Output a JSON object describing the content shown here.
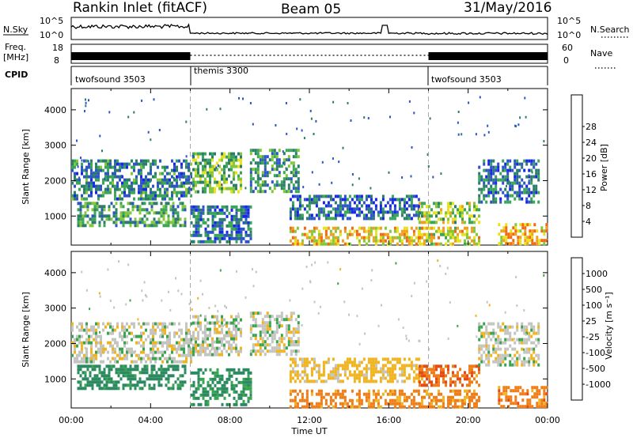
{
  "header": {
    "station": "Rankin Inlet (fitACF)",
    "beam": "Beam 05",
    "date": "31/May/2016"
  },
  "strip_panel": {
    "nsky_label": "N.Sky",
    "nsearch_label": "N.Search",
    "nsky_ticks": [
      "10^5",
      "10^0"
    ],
    "nsearch_ticks": [
      "10^5",
      "10^0"
    ],
    "freq_label_1": "Freq.",
    "freq_label_2": "[MHz]",
    "freq_ticks": [
      "18",
      "8"
    ],
    "nave_label": "Nave",
    "nave_ticks": [
      "60",
      "0"
    ],
    "cpid_label": "CPID",
    "cpid_segments": [
      {
        "name": "twofsound 3503",
        "start_hour": 0,
        "end_hour": 6
      },
      {
        "name": "themis 3300",
        "start_hour": 6,
        "end_hour": 18
      },
      {
        "name": "twofsound 3503",
        "start_hour": 18,
        "end_hour": 24
      }
    ]
  },
  "chart_data": [
    {
      "type": "heatmap",
      "title": "",
      "xlabel": "",
      "ylabel": "Slant Range [km]",
      "xlim": [
        0,
        24
      ],
      "ylim": [
        180,
        4600
      ],
      "y_ticks": [
        1000,
        2000,
        3000,
        4000
      ],
      "colorbar": {
        "label": "Power [dB]",
        "ticks": [
          "4",
          "8",
          "12",
          "16",
          "20",
          "24",
          "28"
        ],
        "colors": [
          "#1628e6",
          "#2e54c8",
          "#2c7e6a",
          "#3aa657",
          "#84c83a",
          "#e8e21c",
          "#f0a020",
          "#f06a14",
          "#e8140e"
        ]
      },
      "regions": [
        {
          "t": [
            0.0,
            6.0
          ],
          "r": [
            1500,
            2600
          ],
          "v": 10
        },
        {
          "t": [
            0.3,
            5.8
          ],
          "r": [
            700,
            1400
          ],
          "v": 13
        },
        {
          "t": [
            6.1,
            8.5
          ],
          "r": [
            1700,
            2800
          ],
          "v": 16
        },
        {
          "t": [
            6.0,
            9.0
          ],
          "r": [
            300,
            1300
          ],
          "v": 9
        },
        {
          "t": [
            9.0,
            11.5
          ],
          "r": [
            1700,
            2900
          ],
          "v": 12
        },
        {
          "t": [
            11.0,
            17.5
          ],
          "r": [
            900,
            1600
          ],
          "v": 8
        },
        {
          "t": [
            11.0,
            17.5
          ],
          "r": [
            200,
            700
          ],
          "v": 24
        },
        {
          "t": [
            17.5,
            20.5
          ],
          "r": [
            800,
            1400
          ],
          "v": 18
        },
        {
          "t": [
            17.5,
            20.5
          ],
          "r": [
            200,
            700
          ],
          "v": 22
        },
        {
          "t": [
            20.5,
            23.5
          ],
          "r": [
            1400,
            2600
          ],
          "v": 9
        },
        {
          "t": [
            21.5,
            24.0
          ],
          "r": [
            200,
            800
          ],
          "v": 25
        }
      ]
    },
    {
      "type": "heatmap",
      "title": "",
      "xlabel": "Time UT",
      "ylabel": "Slant Range [km]",
      "xlim": [
        0,
        24
      ],
      "ylim": [
        180,
        4600
      ],
      "x_ticks": [
        "00:00",
        "04:00",
        "08:00",
        "12:00",
        "16:00",
        "20:00",
        "00:00"
      ],
      "y_ticks": [
        1000,
        2000,
        3000,
        4000
      ],
      "colorbar": {
        "label": "Velocity [m s⁻¹]",
        "ticks": [
          "1000",
          "500",
          "100",
          "25",
          "-25",
          "-100",
          "-500",
          "-1000"
        ],
        "colors": [
          "#1c3ce0",
          "#2f68b8",
          "#2b8a60",
          "#3aa550",
          "#c4c4c0",
          "#f0b420",
          "#f07e18",
          "#e84a14",
          "#e01010"
        ]
      },
      "regions": [
        {
          "t": [
            0.0,
            6.0
          ],
          "r": [
            1500,
            2600
          ],
          "v": 0
        },
        {
          "t": [
            0.3,
            5.8
          ],
          "r": [
            700,
            1400
          ],
          "v": 200
        },
        {
          "t": [
            6.1,
            8.5
          ],
          "r": [
            1700,
            2800
          ],
          "v": 0
        },
        {
          "t": [
            6.0,
            9.0
          ],
          "r": [
            300,
            1300
          ],
          "v": 150
        },
        {
          "t": [
            9.0,
            11.5
          ],
          "r": [
            1700,
            2900
          ],
          "v": 0
        },
        {
          "t": [
            11.0,
            17.5
          ],
          "r": [
            900,
            1600
          ],
          "v": -50
        },
        {
          "t": [
            11.0,
            17.5
          ],
          "r": [
            200,
            700
          ],
          "v": -200
        },
        {
          "t": [
            17.5,
            20.5
          ],
          "r": [
            800,
            1400
          ],
          "v": -400
        },
        {
          "t": [
            17.5,
            20.5
          ],
          "r": [
            200,
            700
          ],
          "v": -150
        },
        {
          "t": [
            20.5,
            23.5
          ],
          "r": [
            1400,
            2600
          ],
          "v": 0
        },
        {
          "t": [
            21.5,
            24.0
          ],
          "r": [
            200,
            800
          ],
          "v": -300
        }
      ]
    }
  ]
}
